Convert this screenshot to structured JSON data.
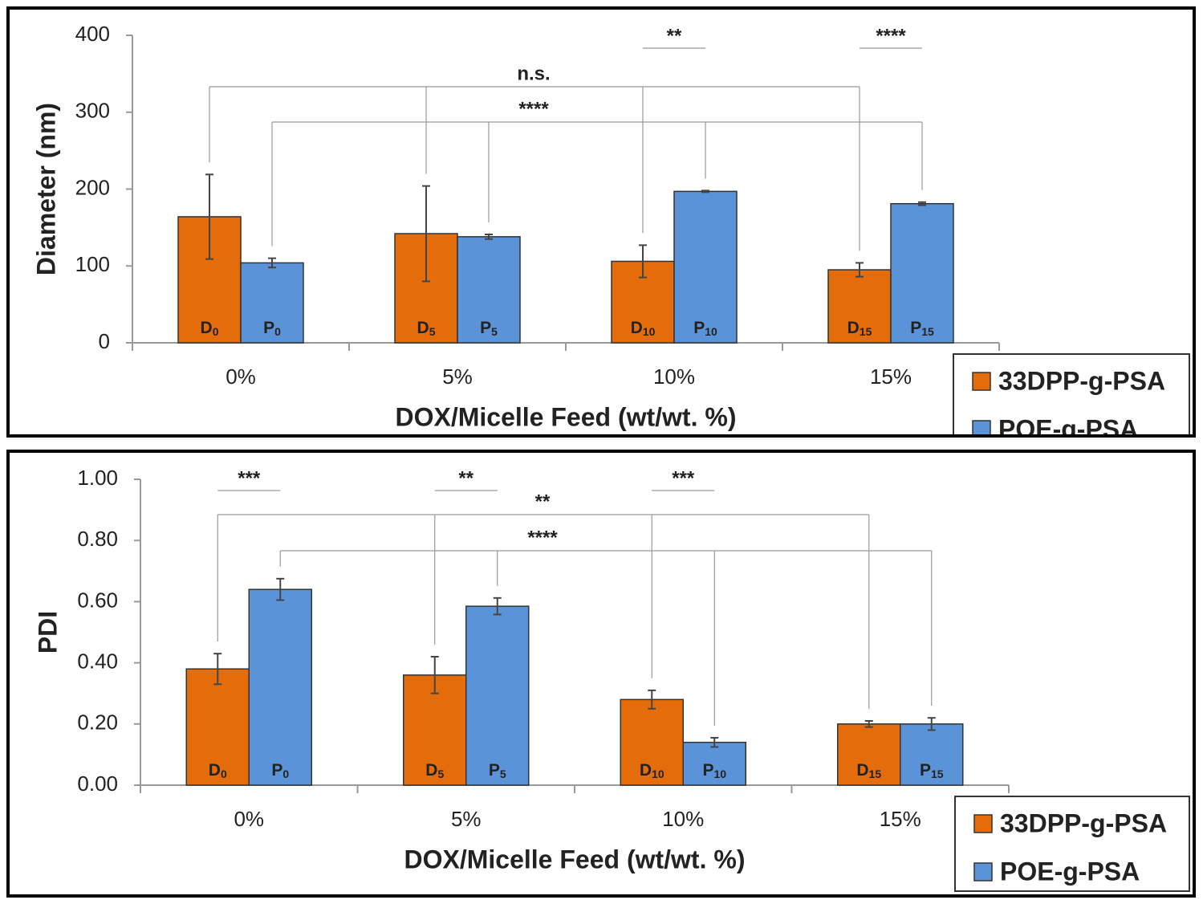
{
  "chart_data": [
    {
      "type": "bar",
      "y_label": "Diameter (nm)",
      "x_label": "DOX/Micelle Feed (wt/wt. %)",
      "categories": [
        "0%",
        "5%",
        "10%",
        "15%"
      ],
      "ylim": [
        0,
        400
      ],
      "yticks": [
        0,
        100,
        200,
        300,
        400
      ],
      "legend": "lower right",
      "series": [
        {
          "name": "33DPP-g-PSA",
          "color": "#e46c0a",
          "values": [
            164,
            142,
            106,
            95
          ],
          "errors": [
            55,
            62,
            21,
            9
          ],
          "bar_labels": [
            {
              "text": "D",
              "sub": "0"
            },
            {
              "text": "D",
              "sub": "5"
            },
            {
              "text": "D",
              "sub": "10"
            },
            {
              "text": "D",
              "sub": "15"
            }
          ]
        },
        {
          "name": "POE-g-PSA",
          "color": "#5b93d8",
          "values": [
            104,
            138,
            197,
            181
          ],
          "errors": [
            6,
            3,
            1,
            2
          ],
          "bar_labels": [
            {
              "text": "P",
              "sub": "0"
            },
            {
              "text": "P",
              "sub": "5"
            },
            {
              "text": "P",
              "sub": "10"
            },
            {
              "text": "P",
              "sub": "15"
            }
          ]
        }
      ],
      "brackets": [
        {
          "label": "n.s.",
          "series": 0
        },
        {
          "label": "****",
          "series": 1
        }
      ],
      "pair_marks": [
        {
          "label": "**",
          "category": 2
        },
        {
          "label": "****",
          "category": 3
        }
      ]
    },
    {
      "type": "bar",
      "y_label": "PDI",
      "x_label": "DOX/Micelle Feed (wt/wt. %)",
      "categories": [
        "0%",
        "5%",
        "10%",
        "15%"
      ],
      "ylim": [
        0,
        1
      ],
      "yticks": [
        {
          "value": 0,
          "label": "0.00"
        },
        {
          "value": 0.2,
          "label": "0.20"
        },
        {
          "value": 0.4,
          "label": "0.40"
        },
        {
          "value": 0.6,
          "label": "0.60"
        },
        {
          "value": 0.8,
          "label": "0.80"
        },
        {
          "value": 1,
          "label": "1.00"
        }
      ],
      "legend": "lower right",
      "series": [
        {
          "name": "33DPP-g-PSA",
          "color": "#e46c0a",
          "values": [
            0.38,
            0.36,
            0.28,
            0.2
          ],
          "errors": [
            0.05,
            0.06,
            0.03,
            0.01
          ],
          "bar_labels": [
            {
              "text": "D",
              "sub": "0"
            },
            {
              "text": "D",
              "sub": "5"
            },
            {
              "text": "D",
              "sub": "10"
            },
            {
              "text": "D",
              "sub": "15"
            }
          ]
        },
        {
          "name": "POE-g-PSA",
          "color": "#5b93d8",
          "values": [
            0.64,
            0.585,
            0.14,
            0.2
          ],
          "errors": [
            0.035,
            0.027,
            0.015,
            0.02
          ],
          "bar_labels": [
            {
              "text": "P",
              "sub": "0"
            },
            {
              "text": "P",
              "sub": "5"
            },
            {
              "text": "P",
              "sub": "10"
            },
            {
              "text": "P",
              "sub": "15"
            }
          ]
        }
      ],
      "brackets": [
        {
          "label": "**",
          "series": 0
        },
        {
          "label": "****",
          "series": 1
        }
      ],
      "pair_marks": [
        {
          "label": "***",
          "category": 0
        },
        {
          "label": "**",
          "category": 1
        },
        {
          "label": "***",
          "category": 2
        }
      ]
    }
  ]
}
